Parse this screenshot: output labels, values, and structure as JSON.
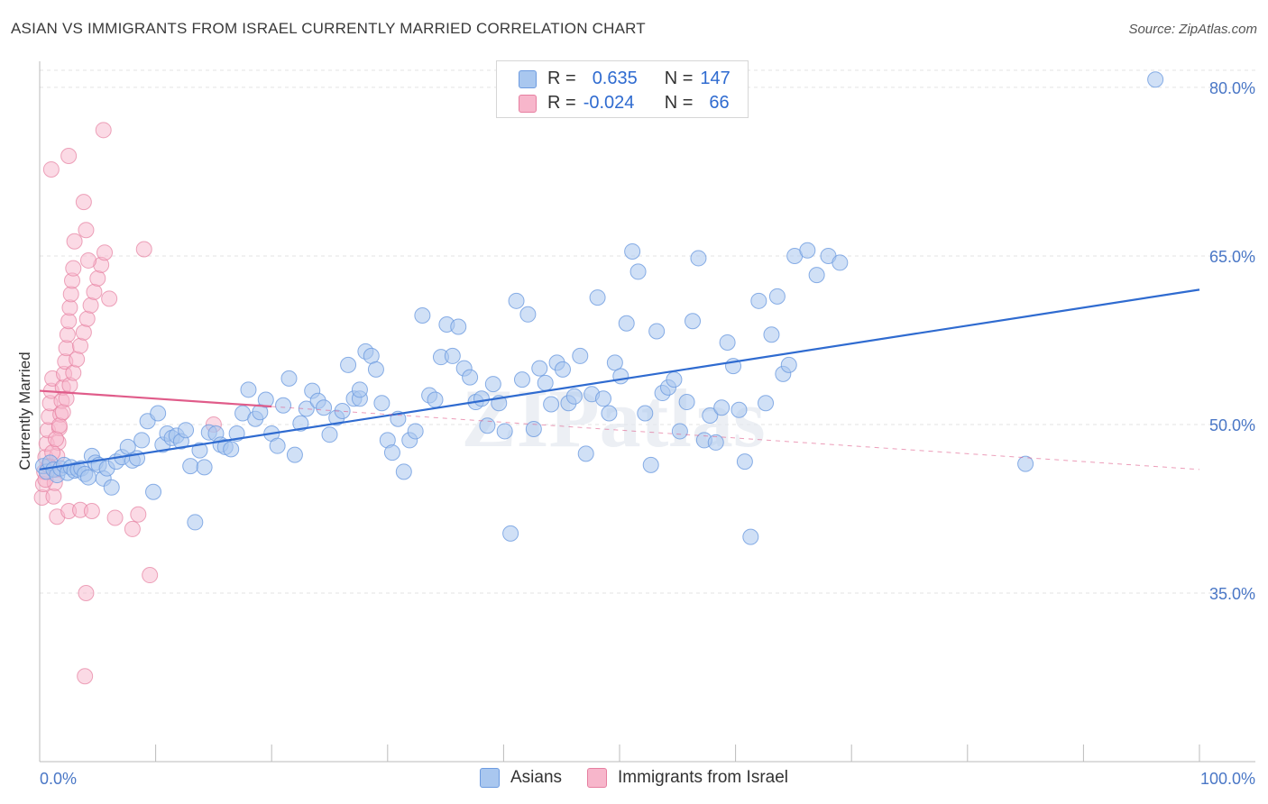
{
  "header": {
    "title": "ASIAN VS IMMIGRANTS FROM ISRAEL CURRENTLY MARRIED CORRELATION CHART",
    "source": "Source: ZipAtlas.com"
  },
  "legend": {
    "rows": [
      {
        "r_label": "R =",
        "r_value": "0.635",
        "n_label": "N =",
        "n_value": "147",
        "color": "#a9c7ef",
        "border": "#6d9be0"
      },
      {
        "r_label": "R =",
        "r_value": "-0.024",
        "n_label": "N =",
        "n_value": "66",
        "color": "#f7b6cb",
        "border": "#e67fa0"
      }
    ]
  },
  "bottom_legend": {
    "items": [
      {
        "label": "Asians",
        "color": "#a9c7ef",
        "border": "#6d9be0"
      },
      {
        "label": "Immigrants from Israel",
        "color": "#f7b6cb",
        "border": "#e67fa0"
      }
    ]
  },
  "watermark": "ZIPatlas",
  "chart_data": {
    "type": "scatter",
    "xlabel": "",
    "ylabel": "Currently Married",
    "xlim": [
      0,
      100
    ],
    "ylim": [
      20,
      82
    ],
    "x_tick_labels": [
      "0.0%",
      "100.0%"
    ],
    "y_ticks": [
      35,
      50,
      65,
      80
    ],
    "y_tick_labels": [
      "35.0%",
      "50.0%",
      "65.0%",
      "80.0%"
    ],
    "grid": true,
    "legend_position": "top-center",
    "colors": {
      "asians": "#6d9be0",
      "asians_fill": "#a9c7ef",
      "israel": "#e67fa0",
      "israel_fill": "#f7b6cb",
      "asians_line": "#2f6bd0",
      "israel_line": "#e05c8a"
    },
    "series": [
      {
        "name": "Asians",
        "trend": {
          "x": [
            0,
            100
          ],
          "y": [
            46.0,
            62.0
          ]
        },
        "points": [
          [
            0.3,
            46.3
          ],
          [
            0.6,
            45.8
          ],
          [
            0.9,
            46.6
          ],
          [
            1.2,
            46.0
          ],
          [
            1.5,
            45.5
          ],
          [
            1.8,
            46.1
          ],
          [
            2.1,
            46.4
          ],
          [
            2.4,
            45.7
          ],
          [
            2.7,
            46.2
          ],
          [
            3.0,
            45.9
          ],
          [
            3.3,
            46.0
          ],
          [
            3.6,
            46.1
          ],
          [
            3.9,
            45.6
          ],
          [
            4.2,
            45.3
          ],
          [
            4.5,
            47.2
          ],
          [
            4.8,
            46.6
          ],
          [
            5.1,
            46.4
          ],
          [
            5.5,
            45.2
          ],
          [
            5.8,
            46.1
          ],
          [
            6.2,
            44.4
          ],
          [
            6.6,
            46.7
          ],
          [
            7.1,
            47.1
          ],
          [
            7.6,
            48.0
          ],
          [
            8.0,
            46.8
          ],
          [
            8.4,
            47.0
          ],
          [
            8.8,
            48.6
          ],
          [
            9.3,
            50.3
          ],
          [
            9.8,
            44.0
          ],
          [
            10.2,
            51.0
          ],
          [
            10.6,
            48.2
          ],
          [
            11.0,
            49.2
          ],
          [
            11.4,
            48.8
          ],
          [
            11.8,
            49.0
          ],
          [
            12.2,
            48.5
          ],
          [
            12.6,
            49.5
          ],
          [
            13.0,
            46.3
          ],
          [
            13.4,
            41.3
          ],
          [
            13.8,
            47.7
          ],
          [
            14.2,
            46.2
          ],
          [
            14.6,
            49.3
          ],
          [
            15.2,
            49.2
          ],
          [
            15.6,
            48.2
          ],
          [
            16.0,
            48.0
          ],
          [
            16.5,
            47.8
          ],
          [
            17.0,
            49.2
          ],
          [
            17.5,
            51.0
          ],
          [
            18.0,
            53.1
          ],
          [
            18.6,
            50.5
          ],
          [
            19.0,
            51.1
          ],
          [
            19.5,
            52.2
          ],
          [
            20.0,
            49.2
          ],
          [
            20.5,
            48.1
          ],
          [
            21.0,
            51.7
          ],
          [
            21.5,
            54.1
          ],
          [
            22.0,
            47.3
          ],
          [
            22.5,
            50.1
          ],
          [
            23.0,
            51.4
          ],
          [
            23.5,
            53.0
          ],
          [
            24.0,
            52.1
          ],
          [
            24.5,
            51.5
          ],
          [
            25.0,
            49.1
          ],
          [
            25.6,
            50.6
          ],
          [
            26.1,
            51.2
          ],
          [
            26.6,
            55.3
          ],
          [
            27.1,
            52.3
          ],
          [
            27.6,
            52.3
          ],
          [
            28.1,
            56.5
          ],
          [
            28.6,
            56.1
          ],
          [
            29.0,
            54.9
          ],
          [
            29.5,
            51.9
          ],
          [
            30.0,
            48.6
          ],
          [
            30.4,
            47.5
          ],
          [
            30.9,
            50.5
          ],
          [
            31.4,
            45.8
          ],
          [
            31.9,
            48.6
          ],
          [
            32.4,
            49.4
          ],
          [
            33.0,
            59.7
          ],
          [
            33.6,
            52.6
          ],
          [
            34.1,
            52.2
          ],
          [
            34.6,
            56.0
          ],
          [
            35.1,
            58.9
          ],
          [
            35.6,
            56.1
          ],
          [
            36.1,
            58.7
          ],
          [
            36.6,
            55.0
          ],
          [
            37.1,
            54.2
          ],
          [
            37.6,
            52.0
          ],
          [
            38.1,
            52.3
          ],
          [
            38.6,
            49.9
          ],
          [
            39.1,
            53.6
          ],
          [
            39.6,
            51.9
          ],
          [
            40.1,
            49.4
          ],
          [
            40.6,
            40.3
          ],
          [
            41.1,
            61.0
          ],
          [
            41.6,
            54.0
          ],
          [
            42.1,
            59.8
          ],
          [
            42.6,
            49.6
          ],
          [
            43.1,
            55.0
          ],
          [
            43.6,
            53.7
          ],
          [
            44.1,
            51.8
          ],
          [
            44.6,
            55.5
          ],
          [
            45.1,
            54.9
          ],
          [
            45.6,
            51.9
          ],
          [
            46.1,
            52.5
          ],
          [
            46.6,
            56.1
          ],
          [
            47.1,
            47.4
          ],
          [
            47.6,
            52.7
          ],
          [
            48.1,
            61.3
          ],
          [
            48.6,
            52.3
          ],
          [
            49.1,
            51.0
          ],
          [
            49.6,
            55.5
          ],
          [
            50.1,
            54.3
          ],
          [
            50.6,
            59.0
          ],
          [
            51.1,
            65.4
          ],
          [
            51.6,
            63.6
          ],
          [
            52.2,
            51.0
          ],
          [
            52.7,
            46.4
          ],
          [
            53.2,
            58.3
          ],
          [
            53.7,
            52.8
          ],
          [
            54.2,
            53.3
          ],
          [
            54.7,
            54.0
          ],
          [
            55.2,
            49.4
          ],
          [
            55.8,
            52.0
          ],
          [
            56.3,
            59.2
          ],
          [
            56.8,
            64.8
          ],
          [
            57.3,
            48.6
          ],
          [
            57.8,
            50.8
          ],
          [
            58.3,
            48.4
          ],
          [
            58.8,
            51.5
          ],
          [
            59.3,
            57.3
          ],
          [
            59.8,
            55.2
          ],
          [
            60.3,
            51.3
          ],
          [
            60.8,
            46.7
          ],
          [
            61.3,
            40.0
          ],
          [
            62.0,
            61.0
          ],
          [
            62.6,
            51.9
          ],
          [
            63.1,
            58.0
          ],
          [
            63.6,
            61.4
          ],
          [
            64.1,
            54.5
          ],
          [
            64.6,
            55.3
          ],
          [
            65.1,
            65.0
          ],
          [
            66.2,
            65.5
          ],
          [
            67.0,
            63.3
          ],
          [
            68.0,
            65.0
          ],
          [
            69.0,
            64.4
          ],
          [
            85.0,
            46.5
          ],
          [
            96.2,
            80.7
          ],
          [
            27.6,
            53.1
          ]
        ]
      },
      {
        "name": "Immigrants from Israel",
        "trend_solid": {
          "x": [
            0,
            20
          ],
          "y": [
            53.0,
            51.6
          ]
        },
        "trend_dashed": {
          "x": [
            20,
            100
          ],
          "y": [
            51.6,
            46.0
          ]
        },
        "points": [
          [
            0.2,
            43.5
          ],
          [
            0.3,
            44.7
          ],
          [
            0.4,
            45.8
          ],
          [
            0.5,
            47.1
          ],
          [
            0.6,
            48.3
          ],
          [
            0.7,
            49.5
          ],
          [
            0.8,
            50.7
          ],
          [
            0.9,
            51.9
          ],
          [
            1.0,
            53.0
          ],
          [
            1.1,
            54.1
          ],
          [
            1.2,
            43.6
          ],
          [
            1.3,
            44.8
          ],
          [
            1.4,
            46.0
          ],
          [
            1.5,
            47.2
          ],
          [
            1.6,
            48.4
          ],
          [
            1.7,
            49.7
          ],
          [
            1.8,
            50.9
          ],
          [
            1.9,
            52.1
          ],
          [
            2.0,
            53.3
          ],
          [
            2.1,
            54.5
          ],
          [
            2.2,
            55.6
          ],
          [
            2.3,
            56.8
          ],
          [
            2.4,
            58.0
          ],
          [
            2.5,
            59.2
          ],
          [
            2.6,
            60.4
          ],
          [
            2.7,
            61.6
          ],
          [
            2.8,
            62.8
          ],
          [
            2.9,
            63.9
          ],
          [
            0.5,
            45.1
          ],
          [
            0.8,
            46.3
          ],
          [
            1.1,
            47.5
          ],
          [
            1.4,
            48.7
          ],
          [
            1.7,
            49.9
          ],
          [
            2.0,
            51.1
          ],
          [
            2.3,
            52.3
          ],
          [
            2.6,
            53.5
          ],
          [
            2.9,
            54.6
          ],
          [
            3.2,
            55.8
          ],
          [
            3.5,
            57.0
          ],
          [
            3.8,
            58.2
          ],
          [
            4.1,
            59.4
          ],
          [
            4.4,
            60.6
          ],
          [
            4.7,
            61.8
          ],
          [
            5.0,
            63.0
          ],
          [
            5.3,
            64.2
          ],
          [
            5.6,
            65.3
          ],
          [
            1.5,
            41.8
          ],
          [
            2.5,
            42.3
          ],
          [
            3.5,
            42.4
          ],
          [
            4.5,
            42.3
          ],
          [
            6.5,
            41.7
          ],
          [
            1.0,
            72.7
          ],
          [
            2.5,
            73.9
          ],
          [
            3.8,
            69.8
          ],
          [
            5.5,
            76.2
          ],
          [
            4.0,
            67.3
          ],
          [
            4.2,
            64.6
          ],
          [
            3.0,
            66.3
          ],
          [
            9.0,
            65.6
          ],
          [
            6.0,
            61.2
          ],
          [
            8.5,
            42.0
          ],
          [
            8.0,
            40.7
          ],
          [
            9.5,
            36.6
          ],
          [
            4.0,
            35.0
          ],
          [
            3.9,
            27.6
          ],
          [
            15.0,
            50.0
          ]
        ]
      }
    ]
  }
}
